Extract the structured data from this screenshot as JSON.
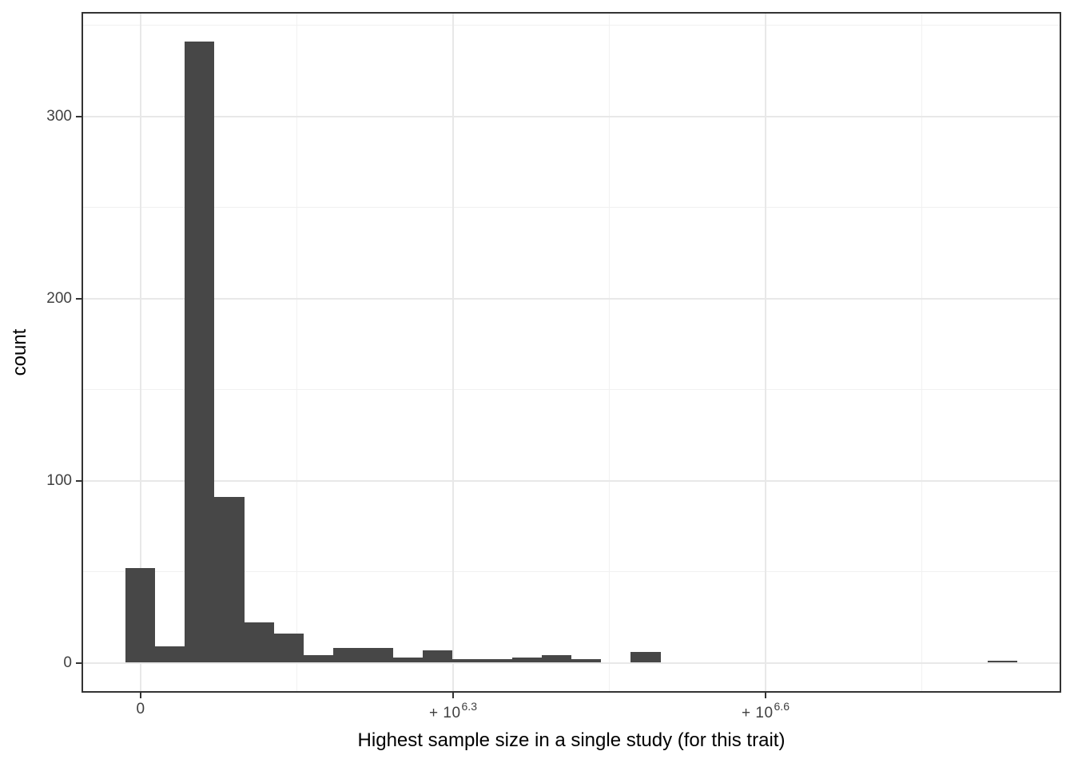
{
  "chart_data": {
    "type": "histogram",
    "title": "",
    "xlabel": "Highest sample size in a single study (for this trait)",
    "ylabel": "count",
    "x_scale": "signed pseudo-log10",
    "x_ticks": [
      {
        "base": "0",
        "sup": ""
      },
      {
        "base": "+ 10",
        "sup": "6.3"
      },
      {
        "base": "+ 10",
        "sup": "6.6"
      }
    ],
    "y_ticks": [
      0,
      100,
      200,
      300
    ],
    "y_minor_ticks": [
      50,
      150,
      250,
      350
    ],
    "ylim": [
      -17,
      357
    ],
    "grid": true,
    "legend": "none",
    "bins": {
      "counts": [
        52,
        9,
        341,
        91,
        22,
        16,
        4,
        8,
        8,
        3,
        7,
        2,
        2,
        3,
        4,
        2,
        0,
        6,
        0,
        0,
        0,
        0,
        0,
        0,
        0,
        0,
        0,
        0,
        0,
        1
      ]
    },
    "colors": {
      "bar": "#474747",
      "grid_major": "#e8e8e8",
      "grid_minor": "#f1f1f1",
      "panel_border": "#333333",
      "tick_mark": "#333333",
      "tick_label": "#404040",
      "axis_title": "#000000",
      "background": "#ffffff"
    }
  }
}
